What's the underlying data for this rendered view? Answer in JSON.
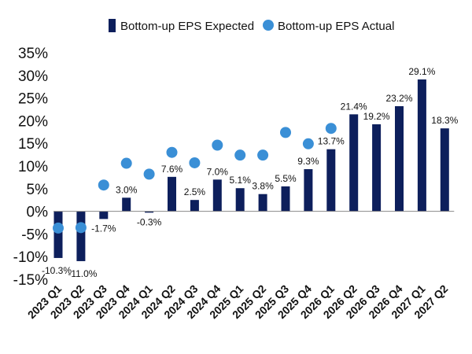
{
  "chart_data": {
    "type": "bar",
    "categories": [
      "2023 Q1",
      "2023 Q2",
      "2023 Q3",
      "2023 Q4",
      "2024 Q1",
      "2024 Q2",
      "2024 Q3",
      "2024 Q4",
      "2025 Q1",
      "2025 Q2",
      "2025 Q3",
      "2025 Q4",
      "2026 Q1",
      "2026 Q2",
      "2026 Q3",
      "2026 Q4",
      "2027 Q1",
      "2027 Q2"
    ],
    "series": [
      {
        "name": "Bottom-up EPS Expected",
        "type": "bar",
        "color": "#0d1f5c",
        "values": [
          -10.3,
          -11.0,
          -1.7,
          3.0,
          -0.3,
          7.6,
          2.5,
          7.0,
          5.1,
          3.8,
          5.5,
          9.3,
          13.7,
          21.4,
          19.2,
          23.2,
          29.1,
          18.3
        ],
        "labels": [
          "-10.3%",
          "-11.0%",
          "-1.7%",
          "3.0%",
          "-0.3%",
          "7.6%",
          "2.5%",
          "7.0%",
          "5.1%",
          "3.8%",
          "5.5%",
          "9.3%",
          "13.7%",
          "21.4%",
          "19.2%",
          "23.2%",
          "29.1%",
          "18.3%"
        ]
      },
      {
        "name": "Bottom-up EPS Actual",
        "type": "scatter",
        "color": "#3a8fd6",
        "values": [
          -3.7,
          -3.6,
          5.8,
          10.6,
          8.2,
          13.0,
          10.7,
          14.6,
          12.4,
          12.4,
          17.4,
          14.9,
          18.3
        ]
      }
    ],
    "yaxis": {
      "min": -15,
      "max": 35,
      "step": 5,
      "tick_labels": [
        "-15%",
        "-10%",
        "-5%",
        "0%",
        "5%",
        "10%",
        "15%",
        "20%",
        "25%",
        "30%",
        "35%"
      ]
    },
    "grid": false,
    "legend_position": "top",
    "title": "",
    "xlabel": "",
    "ylabel": ""
  }
}
